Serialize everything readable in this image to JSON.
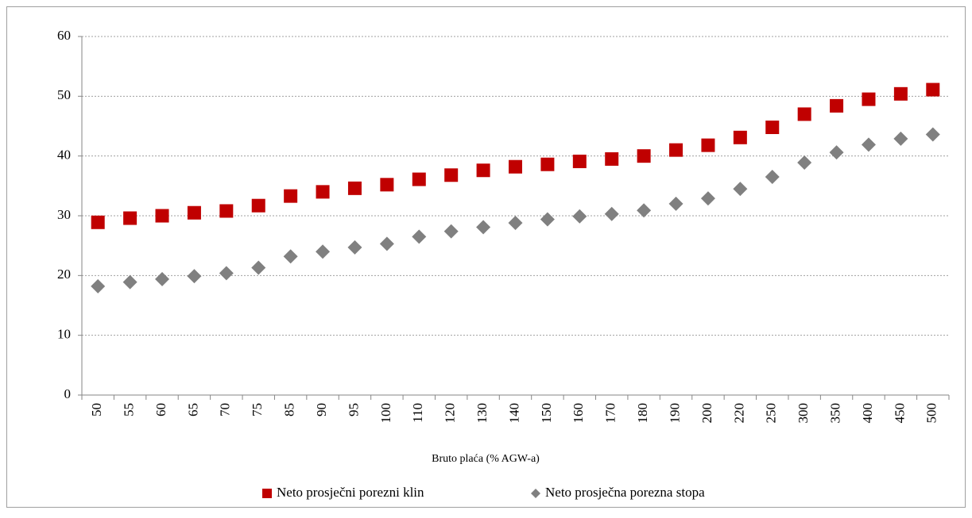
{
  "chart_data": {
    "type": "scatter",
    "x_label": "Bruto plaća (% AGW-a)",
    "categories": [
      "50",
      "55",
      "60",
      "65",
      "70",
      "75",
      "85",
      "90",
      "95",
      "100",
      "110",
      "120",
      "130",
      "140",
      "150",
      "160",
      "170",
      "180",
      "190",
      "200",
      "220",
      "250",
      "300",
      "350",
      "400",
      "450",
      "500"
    ],
    "series": [
      {
        "name": "Neto prosječni porezni klin",
        "color": "#c00000",
        "marker": "square",
        "values": [
          28.9,
          29.6,
          30.0,
          30.5,
          30.8,
          31.7,
          33.3,
          34.0,
          34.6,
          35.2,
          36.1,
          36.8,
          37.6,
          38.2,
          38.6,
          39.1,
          39.5,
          40.0,
          41.0,
          41.8,
          43.1,
          44.8,
          47.0,
          48.4,
          49.5,
          50.4,
          51.1
        ]
      },
      {
        "name": "Neto prosječna porezna stopa",
        "color": "#808080",
        "marker": "diamond",
        "values": [
          18.2,
          18.9,
          19.4,
          19.9,
          20.4,
          21.3,
          23.2,
          24.0,
          24.7,
          25.3,
          26.5,
          27.4,
          28.1,
          28.8,
          29.4,
          29.9,
          30.3,
          30.9,
          32.0,
          32.9,
          34.5,
          36.5,
          38.9,
          40.6,
          41.9,
          42.9,
          43.6
        ]
      }
    ],
    "ylim": [
      0,
      60
    ],
    "yticks": [
      0,
      10,
      20,
      30,
      40,
      50,
      60
    ],
    "grid": true,
    "legend": "bottom"
  }
}
